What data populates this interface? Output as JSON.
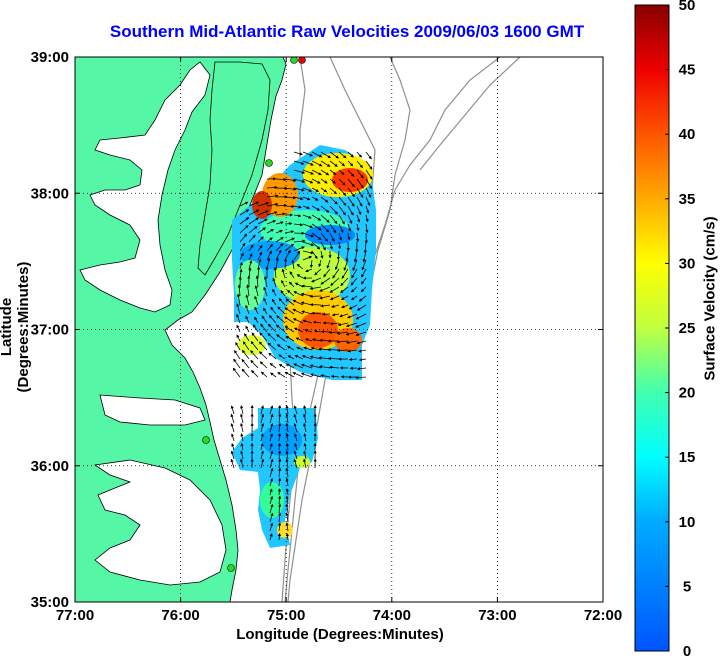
{
  "chart_data": {
    "type": "heatmap",
    "title": "Southern Mid-Atlantic Raw Velocities 2009/06/03 1600 GMT",
    "xlabel": "Longitude (Degrees:Minutes)",
    "ylabel": "Latitude (Degrees:Minutes)",
    "x_ticks": [
      "77:00",
      "76:00",
      "75:00",
      "74:00",
      "73:00",
      "72:00"
    ],
    "y_ticks": [
      "39:00",
      "38:00",
      "37:00",
      "36:00",
      "35:00"
    ],
    "xlim": [
      -77,
      -72
    ],
    "ylim": [
      35,
      39
    ],
    "grid": true,
    "colorbar": {
      "label": "Surface Velocity (cm/s)",
      "min": 0,
      "max": 50,
      "ticks": [
        0,
        5,
        10,
        15,
        20,
        25,
        30,
        35,
        40,
        45,
        50
      ]
    }
  }
}
